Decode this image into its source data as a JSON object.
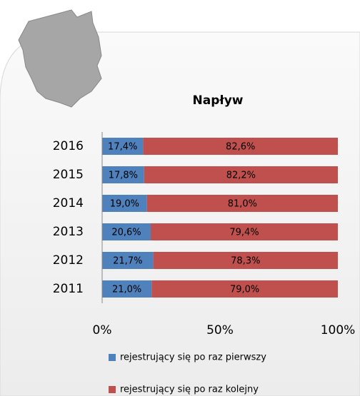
{
  "chart_data": {
    "type": "stacked_barh",
    "title": "Napływ",
    "categories": [
      "2016",
      "2015",
      "2014",
      "2013",
      "2012",
      "2011"
    ],
    "series": [
      {
        "name": "rejestrujący się po raz pierwszy",
        "color": "#4f81bd",
        "values": [
          17.4,
          17.8,
          19.0,
          20.6,
          21.7,
          21.0
        ],
        "value_labels": [
          "17,4%",
          "17,8%",
          "19,0%",
          "20,6%",
          "21,7%",
          "21,0%"
        ]
      },
      {
        "name": "rejestrujący się po raz kolejny",
        "color": "#c0504d",
        "values": [
          82.6,
          82.2,
          81.0,
          79.4,
          78.3,
          79.0
        ],
        "value_labels": [
          "82,6%",
          "82,2%",
          "81,0%",
          "79,4%",
          "78,3%",
          "79,0%"
        ]
      }
    ],
    "xlim": [
      0,
      100
    ],
    "xticks": [
      {
        "value": 0,
        "label": "0%"
      },
      {
        "value": 50,
        "label": "50%"
      },
      {
        "value": 100,
        "label": "100%"
      }
    ]
  }
}
